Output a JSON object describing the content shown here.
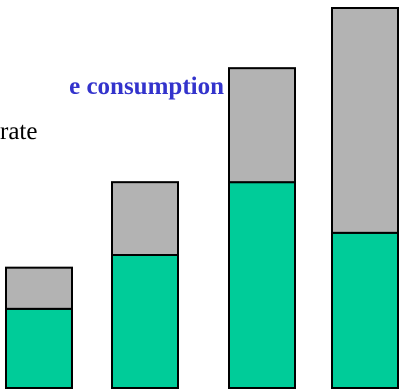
{
  "chart_data": {
    "type": "bar",
    "stacked": true,
    "title": "e consumption",
    "subtitle": "rate",
    "categories": [
      "",
      "",
      "",
      ""
    ],
    "series": [
      {
        "values": [
          25,
          42,
          65,
          49
        ]
      },
      {
        "values": [
          13,
          23,
          36,
          71
        ]
      }
    ],
    "ylim": [
      0,
      120
    ],
    "grid": false,
    "legend": "none",
    "colors": {
      "series": [
        "#00cc99",
        "#b3b3b3"
      ],
      "title": "#3333cc",
      "subtitle": "#000000",
      "outline": "#000000"
    }
  }
}
